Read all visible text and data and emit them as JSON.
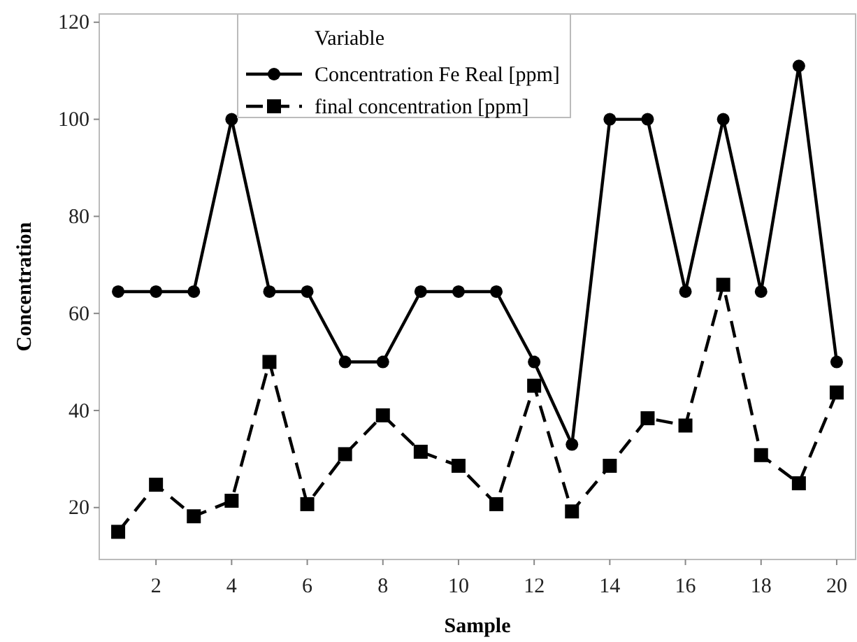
{
  "chart_data": {
    "type": "line",
    "xlabel": "Sample",
    "ylabel": "Concentration",
    "legend_title": "Variable",
    "legend": "top",
    "grid": false,
    "x": [
      1,
      2,
      3,
      4,
      5,
      6,
      7,
      8,
      9,
      10,
      11,
      12,
      13,
      14,
      15,
      16,
      17,
      18,
      19,
      20
    ],
    "xlim": [
      0.5,
      20.5
    ],
    "xticks": [
      2,
      4,
      6,
      8,
      10,
      12,
      14,
      16,
      18,
      20
    ],
    "ylim": [
      9.3,
      121.7
    ],
    "yticks": [
      20,
      40,
      60,
      80,
      100,
      120
    ],
    "series": [
      {
        "name": "Concentration  Fe Real [ppm]",
        "color": "#000000",
        "marker": "circle",
        "line_style": "solid",
        "values": [
          64.5,
          64.5,
          64.5,
          100,
          64.5,
          64.5,
          50,
          50,
          64.5,
          64.5,
          64.5,
          50,
          33,
          100,
          100,
          64.5,
          100,
          64.5,
          111,
          50
        ]
      },
      {
        "name": "final concentration [ppm]",
        "color": "#000000",
        "marker": "square",
        "line_style": "dashed",
        "values": [
          15,
          24.7,
          18.2,
          21.4,
          50,
          20.7,
          31,
          39,
          31.5,
          28.6,
          20.7,
          45.1,
          19.2,
          28.6,
          38.4,
          36.9,
          65.9,
          30.8,
          25,
          43.7
        ]
      }
    ]
  }
}
